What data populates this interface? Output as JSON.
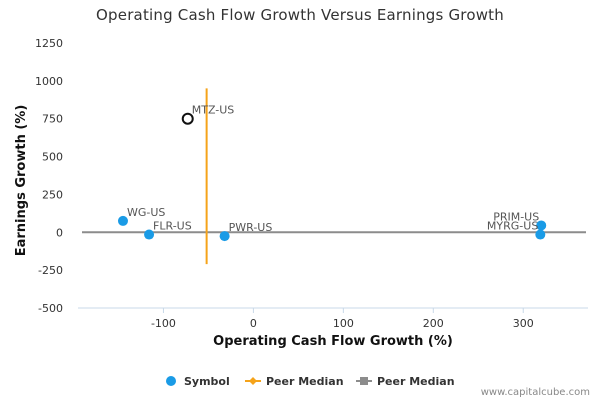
{
  "chart_data": {
    "type": "scatter",
    "title": "Operating Cash Flow Growth Versus Earnings Growth",
    "xlabel": "Operating Cash Flow Growth (%)",
    "ylabel": "Earnings Growth (%)",
    "xlim": [
      -195,
      372
    ],
    "ylim": [
      -500,
      1250
    ],
    "x_ticks": [
      -100,
      0,
      100,
      200,
      300
    ],
    "y_ticks": [
      -500,
      -250,
      0,
      250,
      500,
      750,
      1000,
      1250
    ],
    "grid": false,
    "legend_position": "bottom",
    "colors": {
      "symbol": "#1a9be6",
      "highlight_edge": "#111111",
      "peer_median_x": "#f5a31a",
      "peer_median_y": "#8c8c8c",
      "axis": "#c8d8e8"
    },
    "points": [
      {
        "label": "MTZ-US",
        "x": -73,
        "y": 750,
        "highlight": true
      },
      {
        "label": "WG-US",
        "x": -145,
        "y": 75
      },
      {
        "label": "FLR-US",
        "x": -116,
        "y": -15
      },
      {
        "label": "PWR-US",
        "x": -32,
        "y": -25
      },
      {
        "label": "PRIM-US",
        "x": 320,
        "y": 45
      },
      {
        "label": "MYRG-US",
        "x": 319,
        "y": -15
      }
    ],
    "peer_median_x": {
      "x": -52,
      "y_from": -210,
      "y_to": 950
    },
    "peer_median_y": {
      "y": 0
    },
    "legend": [
      {
        "label": "Symbol",
        "marker": "circle"
      },
      {
        "label": "Peer Median",
        "marker": "diamond-line"
      },
      {
        "label": "Peer Median",
        "marker": "square-line"
      }
    ]
  },
  "credit": "www.capitalcube.com"
}
